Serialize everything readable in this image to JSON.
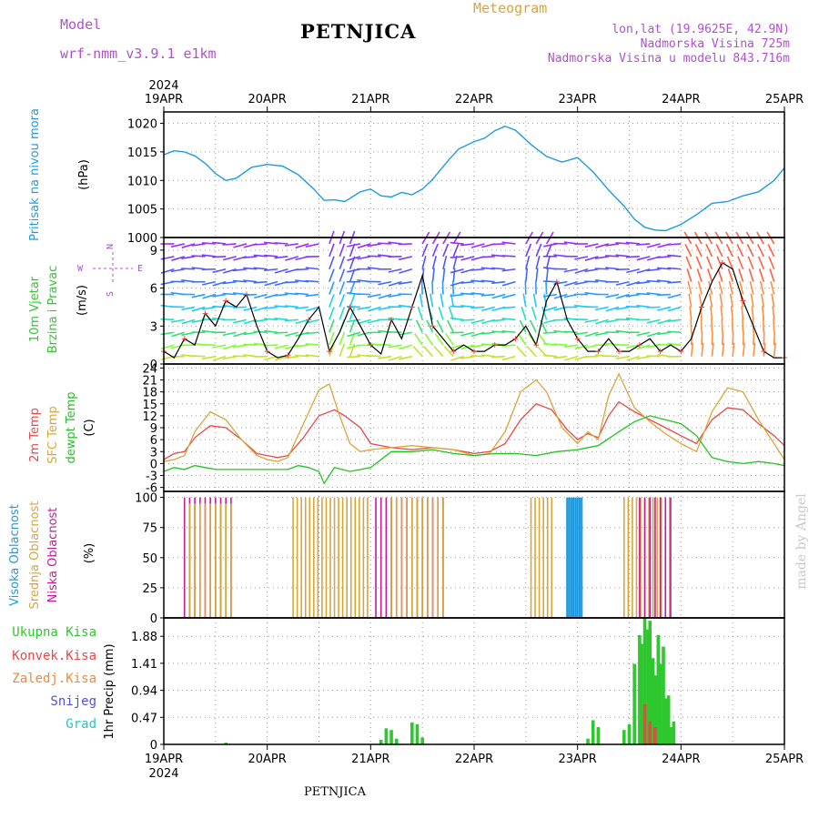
{
  "header": {
    "model_label": "Model",
    "model_name": "wrf-nmm_v3.9.1 e1km",
    "station": "PETNJICA",
    "product": "Meteogram",
    "coords": "lon,lat (19.9625E, 42.9N)",
    "elevation": "Nadmorska Visina 725m",
    "model_elevation": "Nadmorska Visina u modelu 843.716m"
  },
  "colors": {
    "pressure": "#1e9be0",
    "wind_label": "#2ec82e",
    "t2m": "#e84848",
    "sfc": "#d9a53a",
    "dew": "#22c422",
    "high_cloud": "#1e9be0",
    "mid_cloud": "#d9a53a",
    "low_cloud": "#c8189a",
    "total_precip": "#2ec82e",
    "conv_precip": "#e84848",
    "frozen": "#ee8a3a",
    "snow": "#5050e0",
    "graupel": "#20c8c8",
    "compass": "#b050d0",
    "watermark": "#c8c8c8"
  },
  "time_axis": {
    "year": "2024",
    "labels": [
      "19APR",
      "20APR",
      "21APR",
      "22APR",
      "23APR",
      "24APR",
      "25APR"
    ],
    "start_day": 19,
    "end_day": 25
  },
  "compass": {
    "n": "N",
    "e": "E",
    "s": "S",
    "w": "W"
  },
  "watermark": "made by Angel",
  "footer": "PETNJICA",
  "chart_data": [
    {
      "type": "line",
      "ylabel": [
        "Pritisak na nivou mora",
        "(hPa)"
      ],
      "ylim": [
        1000,
        1022
      ],
      "yticks": [
        1000,
        1005,
        1010,
        1015,
        1020
      ],
      "series": [
        {
          "x": [
            19.0,
            19.1,
            19.2,
            19.3,
            19.4,
            19.5,
            19.6,
            19.7,
            19.85,
            20.0,
            20.15,
            20.3,
            20.45,
            20.55,
            20.65,
            20.75,
            20.9,
            21.0,
            21.1,
            21.2,
            21.3,
            21.4,
            21.5,
            21.6,
            21.75,
            21.85,
            22.0,
            22.1,
            22.2,
            22.3,
            22.4,
            22.55,
            22.7,
            22.85,
            23.0,
            23.15,
            23.3,
            23.45,
            23.55,
            23.65,
            23.75,
            23.85,
            24.0,
            24.15,
            24.3,
            24.45,
            24.6,
            24.75,
            24.9,
            25.0
          ],
          "y": [
            1014.5,
            1015.2,
            1015.0,
            1014.3,
            1013.0,
            1011.2,
            1010.0,
            1010.4,
            1012.3,
            1012.8,
            1012.5,
            1011.0,
            1008.5,
            1006.5,
            1006.6,
            1006.3,
            1008.0,
            1008.5,
            1007.3,
            1007.1,
            1007.9,
            1007.5,
            1008.5,
            1010.2,
            1013.5,
            1015.5,
            1016.8,
            1017.4,
            1018.7,
            1019.5,
            1018.8,
            1016.3,
            1014.2,
            1013.2,
            1014.0,
            1011.5,
            1008.3,
            1005.5,
            1003.2,
            1001.8,
            1001.3,
            1001.2,
            1002.3,
            1004.0,
            1006.0,
            1006.3,
            1007.3,
            1008.0,
            1010.0,
            1012.2
          ]
        }
      ]
    },
    {
      "type": "line",
      "ylabel": [
        "10m Vjetar",
        "Brzina i Pravac",
        "(m/s)"
      ],
      "ylim": [
        0,
        10
      ],
      "yticks": [
        0,
        3,
        6,
        9
      ],
      "series": [
        {
          "name": "wind_speed",
          "x": [
            19.0,
            19.1,
            19.2,
            19.3,
            19.4,
            19.5,
            19.6,
            19.7,
            19.8,
            19.9,
            20.0,
            20.1,
            20.2,
            20.3,
            20.4,
            20.5,
            20.6,
            20.7,
            20.8,
            20.9,
            21.0,
            21.1,
            21.2,
            21.3,
            21.4,
            21.5,
            21.6,
            21.7,
            21.8,
            21.9,
            22.0,
            22.1,
            22.2,
            22.3,
            22.4,
            22.5,
            22.6,
            22.7,
            22.8,
            22.9,
            23.0,
            23.1,
            23.2,
            23.3,
            23.4,
            23.5,
            23.6,
            23.7,
            23.8,
            23.9,
            24.0,
            24.1,
            24.2,
            24.3,
            24.4,
            24.5,
            24.6,
            24.7,
            24.8,
            24.9,
            25.0
          ],
          "y": [
            1.0,
            0.5,
            2.0,
            1.5,
            4.0,
            3.0,
            5.0,
            4.5,
            5.5,
            3.0,
            1.0,
            0.5,
            0.7,
            2.0,
            3.5,
            4.5,
            1.0,
            2.5,
            4.5,
            3.0,
            1.5,
            0.8,
            3.5,
            2.0,
            4.5,
            7.0,
            3.0,
            2.0,
            1.0,
            1.5,
            1.0,
            1.0,
            1.5,
            1.5,
            2.0,
            3.0,
            1.5,
            5.0,
            6.5,
            3.5,
            2.0,
            1.0,
            1.0,
            2.0,
            1.0,
            1.0,
            1.5,
            2.0,
            1.0,
            1.5,
            1.0,
            2.0,
            4.5,
            6.5,
            8.0,
            7.5,
            5.0,
            3.0,
            1.0,
            0.5,
            0.5
          ]
        }
      ]
    },
    {
      "type": "line",
      "ylabel": [
        "2m Temp",
        "SFC Temp",
        "dewpt Temp",
        "(C)"
      ],
      "ylim": [
        -7,
        25
      ],
      "yticks": [
        -6,
        -3,
        0,
        3,
        6,
        9,
        12,
        15,
        18,
        21,
        24
      ],
      "series": [
        {
          "name": "2m Temp",
          "x": [
            19.0,
            19.1,
            19.2,
            19.3,
            19.45,
            19.6,
            19.75,
            19.9,
            20.0,
            20.1,
            20.2,
            20.35,
            20.5,
            20.65,
            20.75,
            20.9,
            21.0,
            21.2,
            21.4,
            21.6,
            21.8,
            22.0,
            22.15,
            22.3,
            22.45,
            22.6,
            22.75,
            22.9,
            23.0,
            23.1,
            23.2,
            23.3,
            23.4,
            23.55,
            23.7,
            23.85,
            24.0,
            24.15,
            24.3,
            24.45,
            24.6,
            24.75,
            24.9,
            25.0
          ],
          "y": [
            1.0,
            2.5,
            3.0,
            6.5,
            9.5,
            9.0,
            6.0,
            2.5,
            2.0,
            1.5,
            2.0,
            6.5,
            12.0,
            13.5,
            12.0,
            9.0,
            5.0,
            4.0,
            3.5,
            4.0,
            3.5,
            2.5,
            3.0,
            5.0,
            11.0,
            15.0,
            13.5,
            8.5,
            6.0,
            7.5,
            6.5,
            12.0,
            15.5,
            13.0,
            11.0,
            9.0,
            7.0,
            5.0,
            11.0,
            14.0,
            13.5,
            10.0,
            7.0,
            4.5
          ]
        },
        {
          "name": "SFC Temp",
          "x": [
            19.0,
            19.1,
            19.2,
            19.3,
            19.45,
            19.6,
            19.75,
            19.9,
            20.0,
            20.1,
            20.2,
            20.35,
            20.5,
            20.6,
            20.7,
            20.8,
            20.9,
            21.0,
            21.2,
            21.4,
            21.6,
            21.8,
            22.0,
            22.15,
            22.3,
            22.45,
            22.6,
            22.7,
            22.85,
            23.0,
            23.1,
            23.2,
            23.3,
            23.4,
            23.55,
            23.7,
            23.85,
            24.0,
            24.15,
            24.3,
            24.45,
            24.6,
            24.75,
            24.9,
            25.0
          ],
          "y": [
            0.5,
            1.0,
            2.0,
            8.0,
            13.0,
            11.0,
            6.0,
            2.0,
            1.0,
            0.5,
            1.5,
            10.0,
            18.5,
            20.0,
            12.0,
            5.0,
            3.0,
            3.5,
            4.0,
            4.5,
            4.0,
            3.5,
            2.0,
            2.5,
            8.0,
            18.0,
            21.0,
            18.0,
            9.0,
            5.0,
            8.0,
            6.0,
            17.0,
            22.5,
            14.0,
            10.5,
            7.5,
            5.0,
            3.0,
            13.0,
            19.0,
            18.0,
            11.0,
            5.0,
            1.0
          ]
        },
        {
          "name": "dewpt Temp",
          "x": [
            19.0,
            19.1,
            19.2,
            19.3,
            19.4,
            19.5,
            19.7,
            19.9,
            20.0,
            20.1,
            20.2,
            20.3,
            20.4,
            20.5,
            20.55,
            20.65,
            20.8,
            21.0,
            21.2,
            21.4,
            21.6,
            21.8,
            22.0,
            22.2,
            22.4,
            22.6,
            22.8,
            23.0,
            23.2,
            23.4,
            23.55,
            23.7,
            23.85,
            24.0,
            24.15,
            24.3,
            24.45,
            24.6,
            24.75,
            24.9,
            25.0
          ],
          "y": [
            -2.0,
            -1.0,
            -1.5,
            -0.5,
            -1.0,
            -1.5,
            -1.5,
            -1.5,
            -1.5,
            -1.5,
            -1.5,
            -0.5,
            -1.0,
            -2.0,
            -5.0,
            -1.0,
            -2.0,
            -1.0,
            3.0,
            3.0,
            3.5,
            2.5,
            2.0,
            2.5,
            2.5,
            2.0,
            3.0,
            3.5,
            4.5,
            8.0,
            10.5,
            12.0,
            11.0,
            10.0,
            7.0,
            1.5,
            0.5,
            0.0,
            0.5,
            0.0,
            -0.5
          ]
        }
      ]
    },
    {
      "type": "bar",
      "ylabel": [
        "Visoka Oblacnost",
        "Srednja Oblacnost",
        "Niska Oblacnost",
        "(%)"
      ],
      "ylim": [
        0,
        105
      ],
      "yticks": [
        0,
        25,
        50,
        75,
        100
      ],
      "bar_days_offset": 19,
      "series": [
        {
          "name": "Niska Oblacnost",
          "x_start": 19.2,
          "x_end": 19.65,
          "step": 0.05,
          "value": 100
        },
        {
          "name": "Srednja Oblacnost",
          "x_start": 19.25,
          "x_end": 19.65,
          "step": 0.05,
          "value": 95
        },
        {
          "name": "Srednja Oblacnost",
          "x_start": 20.25,
          "x_end": 21.0,
          "step": 0.04,
          "value": 100
        },
        {
          "name": "Niska Oblacnost",
          "x_start": 21.05,
          "x_end": 21.7,
          "step": 0.05,
          "value": 100
        },
        {
          "name": "Srednja Oblacnost",
          "x_start": 21.2,
          "x_end": 21.7,
          "step": 0.05,
          "value": 100
        },
        {
          "name": "Srednja Oblacnost",
          "x_start": 22.55,
          "x_end": 22.75,
          "step": 0.04,
          "value": 100
        },
        {
          "name": "Visoka Oblacnost",
          "x_start": 22.9,
          "x_end": 23.05,
          "step": 0.02,
          "value": 100
        },
        {
          "name": "Srednja Oblacnost",
          "x_start": 23.45,
          "x_end": 23.9,
          "step": 0.04,
          "value": 100
        },
        {
          "name": "Niska Oblacnost",
          "x_start": 23.6,
          "x_end": 23.9,
          "step": 0.05,
          "value": 100
        }
      ]
    },
    {
      "type": "bar",
      "ylabel": [
        "1hr Precip (mm)"
      ],
      "ylim": [
        0,
        2.2
      ],
      "yticks": [
        0,
        0.47,
        0.94,
        1.41,
        1.88
      ],
      "legend": [
        "Ukupna Kisa",
        "Konvek.Kisa",
        "Zaledj.Kisa",
        "Snijeg",
        "Grad"
      ],
      "series": [
        {
          "name": "Ukupna Kisa",
          "x": [
            19.6,
            21.1,
            21.15,
            21.2,
            21.25,
            21.4,
            21.45,
            21.5,
            23.1,
            23.15,
            23.2,
            23.45,
            23.5,
            23.55,
            23.6,
            23.62,
            23.65,
            23.68,
            23.7,
            23.73,
            23.75,
            23.78,
            23.8,
            23.83,
            23.85,
            23.88,
            23.9,
            23.93
          ],
          "y": [
            0.03,
            0.08,
            0.28,
            0.25,
            0.1,
            0.38,
            0.35,
            0.12,
            0.1,
            0.42,
            0.3,
            0.25,
            0.35,
            1.4,
            1.9,
            1.75,
            2.2,
            2.0,
            2.15,
            1.5,
            1.2,
            1.9,
            1.4,
            1.7,
            0.8,
            0.85,
            0.3,
            0.4
          ]
        },
        {
          "name": "Konvek.Kisa",
          "x": [
            23.65,
            23.7,
            23.75
          ],
          "y": [
            0.7,
            0.4,
            0.3
          ]
        }
      ]
    }
  ]
}
